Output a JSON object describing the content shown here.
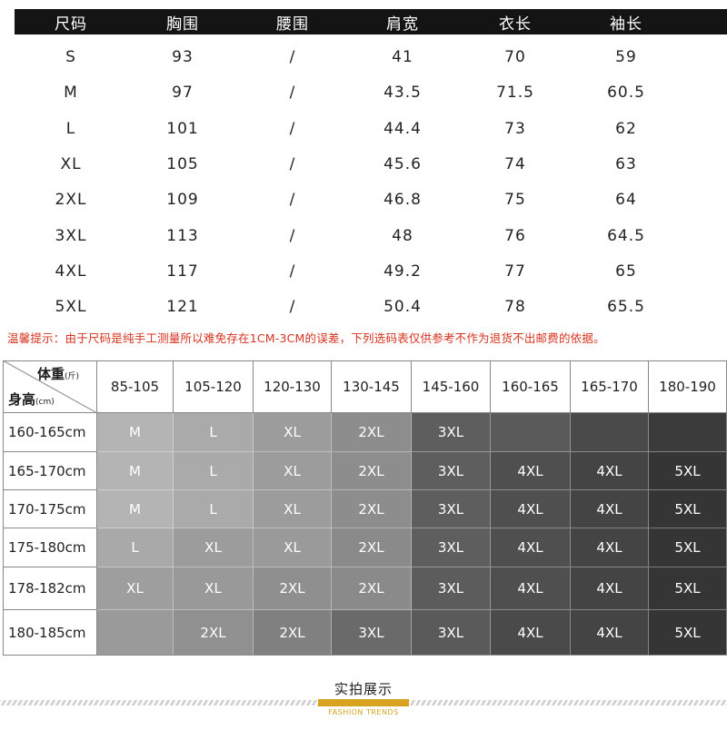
{
  "size_table": {
    "headers": [
      "尺码",
      "胸围",
      "腰围",
      "肩宽",
      "衣长",
      "袖长"
    ],
    "rows": [
      [
        "S",
        "93",
        "/",
        "41",
        "70",
        "59"
      ],
      [
        "M",
        "97",
        "/",
        "43.5",
        "71.5",
        "60.5"
      ],
      [
        "L",
        "101",
        "/",
        "44.4",
        "73",
        "62"
      ],
      [
        "XL",
        "105",
        "/",
        "45.6",
        "74",
        "63"
      ],
      [
        "2XL",
        "109",
        "/",
        "46.8",
        "75",
        "64"
      ],
      [
        "3XL",
        "113",
        "/",
        "48",
        "76",
        "64.5"
      ],
      [
        "4XL",
        "117",
        "/",
        "49.2",
        "77",
        "65"
      ],
      [
        "5XL",
        "121",
        "/",
        "50.4",
        "78",
        "65.5"
      ]
    ]
  },
  "notice": "温馨提示：由于尺码是纯手工测量所以难免存在1CM-3CM的误差，下列选码表仅供参考不作为退货不出邮费的依据。",
  "grid": {
    "weight_label": "体重",
    "weight_unit": "(斤)",
    "height_label": "身高",
    "height_unit": "(cm)",
    "weights": [
      "85-105",
      "105-120",
      "120-130",
      "130-145",
      "145-160",
      "160-165",
      "165-170",
      "180-190"
    ],
    "heights": [
      "160-165cm",
      "165-170cm",
      "170-175cm",
      "175-180cm",
      "178-182cm",
      "180-185cm"
    ],
    "cells": [
      [
        "M",
        "L",
        "XL",
        "2XL",
        "3XL",
        "",
        "",
        ""
      ],
      [
        "M",
        "L",
        "XL",
        "2XL",
        "3XL",
        "4XL",
        "4XL",
        "5XL"
      ],
      [
        "M",
        "L",
        "XL",
        "2XL",
        "3XL",
        "4XL",
        "4XL",
        "5XL"
      ],
      [
        "L",
        "XL",
        "XL",
        "2XL",
        "3XL",
        "4XL",
        "4XL",
        "5XL"
      ],
      [
        "XL",
        "XL",
        "2XL",
        "2XL",
        "3XL",
        "4XL",
        "4XL",
        "5XL"
      ],
      [
        "",
        "2XL",
        "2XL",
        "3XL",
        "3XL",
        "4XL",
        "4XL",
        "5XL"
      ]
    ],
    "colors": [
      [
        "#b4b4b4",
        "#aaaaaa",
        "#9c9c9c",
        "#8d8d8d",
        "#5e5e5e",
        "#5a5a5a",
        "#4a4a4a",
        "#3b3b3b"
      ],
      [
        "#b4b4b4",
        "#aaaaaa",
        "#9c9c9c",
        "#8d8d8d",
        "#5e5e5e",
        "#4f4f4f",
        "#444444",
        "#353535"
      ],
      [
        "#b4b4b4",
        "#aaaaaa",
        "#9c9c9c",
        "#8d8d8d",
        "#5e5e5e",
        "#4f4f4f",
        "#444444",
        "#353535"
      ],
      [
        "#a9a9a9",
        "#9c9c9c",
        "#9a9a9a",
        "#8a8a8a",
        "#5e5e5e",
        "#4f4f4f",
        "#444444",
        "#353535"
      ],
      [
        "#9e9e9e",
        "#999999",
        "#8f8f8f",
        "#8a8a8a",
        "#5c5c5c",
        "#4f4f4f",
        "#444444",
        "#353535"
      ],
      [
        "#9a9a9a",
        "#909090",
        "#808080",
        "#6a6a6a",
        "#5a5a5a",
        "#4a4a4a",
        "#444444",
        "#353535"
      ]
    ]
  },
  "footer": {
    "title": "实拍展示",
    "subtitle": "FASHION TRENDS",
    "accent_color": "#d9a21e"
  }
}
